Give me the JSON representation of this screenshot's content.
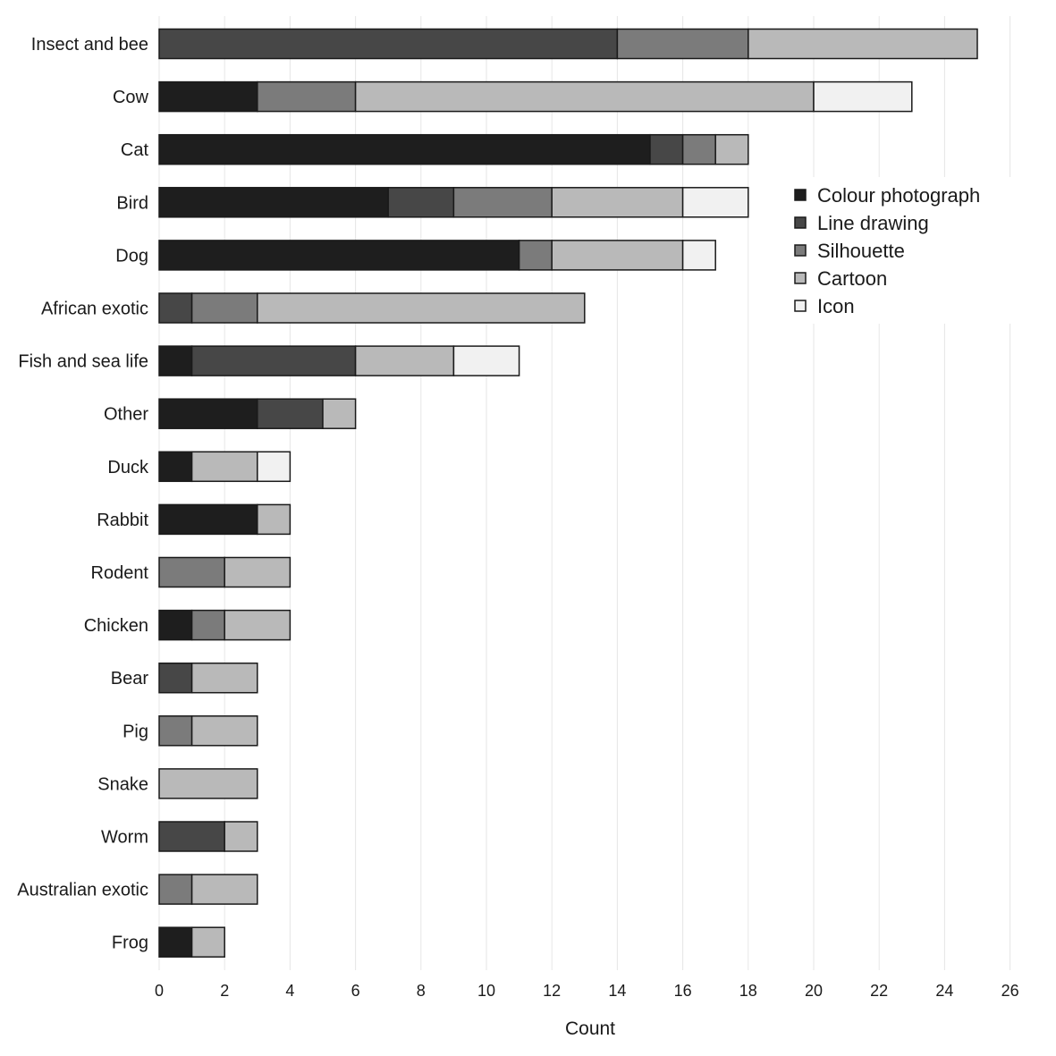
{
  "chart_data": {
    "type": "bar",
    "orientation": "horizontal",
    "stacked": true,
    "title": "",
    "xlabel": "Count",
    "ylabel": "",
    "xlim": [
      0,
      26
    ],
    "x_ticks": [
      0,
      2,
      4,
      6,
      8,
      10,
      12,
      14,
      16,
      18,
      20,
      22,
      24,
      26
    ],
    "grid": "vertical",
    "legend_position": "top-right",
    "categories": [
      "Insect and bee",
      "Cow",
      "Cat",
      "Bird",
      "Dog",
      "African exotic",
      "Fish and sea life",
      "Other",
      "Duck",
      "Rabbit",
      "Rodent",
      "Chicken",
      "Bear",
      "Pig",
      "Snake",
      "Worm",
      "Australian exotic",
      "Frog"
    ],
    "series": [
      {
        "name": "Colour photograph",
        "color": "#1e1e1e",
        "values": [
          0,
          3,
          15,
          7,
          11,
          0,
          1,
          3,
          1,
          3,
          0,
          1,
          0,
          0,
          0,
          0,
          0,
          1
        ]
      },
      {
        "name": "Line drawing",
        "color": "#474747",
        "values": [
          14,
          0,
          1,
          2,
          0,
          1,
          5,
          2,
          0,
          0,
          0,
          0,
          1,
          0,
          0,
          2,
          0,
          0
        ]
      },
      {
        "name": "Silhouette",
        "color": "#7b7b7b",
        "values": [
          4,
          3,
          1,
          3,
          1,
          2,
          0,
          0,
          0,
          0,
          2,
          1,
          0,
          1,
          0,
          0,
          1,
          0
        ]
      },
      {
        "name": "Cartoon",
        "color": "#b9b9b9",
        "values": [
          7,
          14,
          1,
          4,
          4,
          10,
          3,
          1,
          2,
          1,
          2,
          2,
          2,
          2,
          3,
          1,
          2,
          1
        ]
      },
      {
        "name": "Icon",
        "color": "#f1f1f1",
        "values": [
          0,
          3,
          0,
          2,
          1,
          0,
          2,
          0,
          1,
          0,
          0,
          0,
          0,
          0,
          0,
          0,
          0,
          0
        ]
      }
    ]
  }
}
